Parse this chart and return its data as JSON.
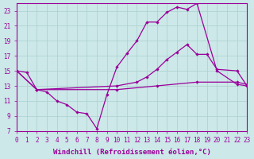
{
  "line1_x": [
    0,
    1,
    2,
    3,
    4,
    5,
    6,
    7,
    8,
    9,
    10,
    11,
    12,
    13,
    14,
    15,
    16,
    17,
    18,
    20,
    22,
    23
  ],
  "line1_y": [
    15,
    14.8,
    12.5,
    12.2,
    11.0,
    10.5,
    9.5,
    9.3,
    7.3,
    11.8,
    15.5,
    17.3,
    19.0,
    21.5,
    21.5,
    22.8,
    23.5,
    23.2,
    24.0,
    15.0,
    13.2,
    13.0
  ],
  "line2_x": [
    0,
    2,
    10,
    12,
    13,
    14,
    15,
    16,
    17,
    18,
    19,
    20,
    22,
    23
  ],
  "line2_y": [
    15,
    12.5,
    13.0,
    13.5,
    14.2,
    15.2,
    16.5,
    17.5,
    18.5,
    17.2,
    17.2,
    15.2,
    15.0,
    13.0
  ],
  "line3_x": [
    0,
    2,
    10,
    14,
    18,
    22,
    23
  ],
  "line3_y": [
    15,
    12.5,
    12.5,
    13.0,
    13.5,
    13.5,
    13.2
  ],
  "background_color": "#cce8e8",
  "grid_color": "#aacfcf",
  "line_color": "#9b009b",
  "xlabel": "Windchill (Refroidissement éolien,°C)",
  "xlim": [
    0,
    23
  ],
  "ylim": [
    7,
    24
  ],
  "xticks": [
    0,
    1,
    2,
    3,
    4,
    5,
    6,
    7,
    8,
    9,
    10,
    11,
    12,
    13,
    14,
    15,
    16,
    17,
    18,
    19,
    20,
    21,
    22,
    23
  ],
  "yticks": [
    7,
    9,
    11,
    13,
    15,
    17,
    19,
    21,
    23
  ],
  "tick_fontsize": 5.5,
  "xlabel_fontsize": 6.5
}
